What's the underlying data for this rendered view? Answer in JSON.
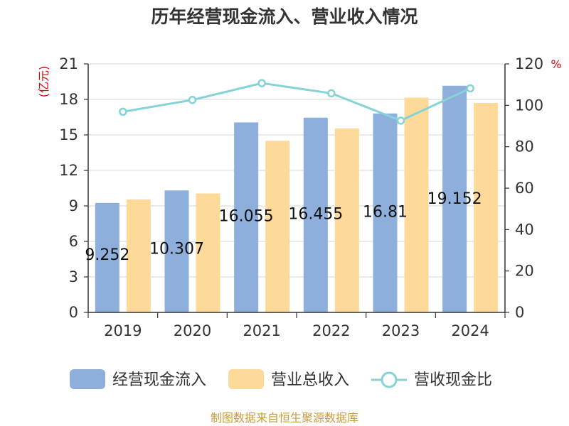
{
  "chart_data": {
    "type": "bar",
    "title": "历年经营现金流入、营业收入情况",
    "categories": [
      "2019",
      "2020",
      "2021",
      "2022",
      "2023",
      "2024"
    ],
    "series": [
      {
        "name": "经营现金流入",
        "type": "bar",
        "axis": "left",
        "color": "#8eaedb",
        "values": [
          9.252,
          10.307,
          16.055,
          16.455,
          16.81,
          19.152
        ],
        "labels": [
          "9.252",
          "10.307",
          "16.055",
          "16.455",
          "16.81",
          "19.152"
        ]
      },
      {
        "name": "营业总收入",
        "type": "bar",
        "axis": "left",
        "color": "#fdd99a",
        "values": [
          9.55,
          10.05,
          14.5,
          15.55,
          18.15,
          17.7
        ]
      },
      {
        "name": "营收现金比",
        "type": "line",
        "axis": "right",
        "color": "#86d3d6",
        "values": [
          96.9,
          102.6,
          110.7,
          105.8,
          92.6,
          108.2
        ]
      }
    ],
    "y_left": {
      "unit": "(亿元)",
      "min": 0,
      "max": 21,
      "ticks": [
        "0",
        "3",
        "6",
        "9",
        "12",
        "15",
        "18",
        "21"
      ]
    },
    "y_right": {
      "unit": "%",
      "min": 0,
      "max": 120,
      "ticks": [
        "0",
        "20",
        "40",
        "60",
        "80",
        "100",
        "120"
      ]
    },
    "grid": true,
    "legend_position": "bottom"
  },
  "source_text": "制图数据来自恒生聚源数据库"
}
